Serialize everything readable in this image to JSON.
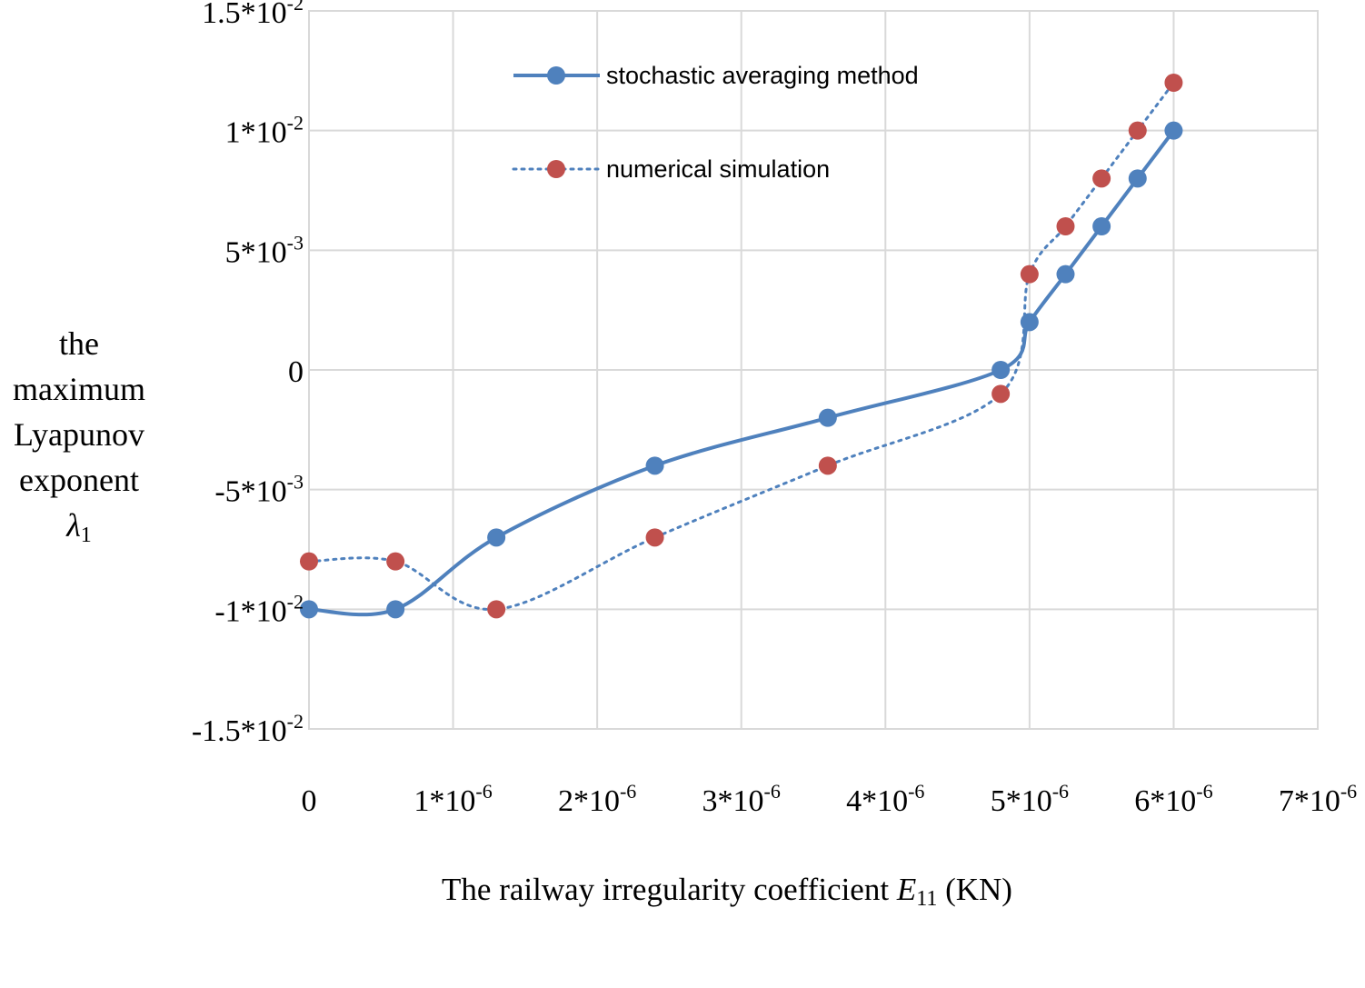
{
  "chart_data": {
    "type": "line",
    "title": "",
    "xlabel": {
      "text": "The railway irregularity coefficient ",
      "symbol": "E",
      "subscript": "11",
      "unit": " (KN)"
    },
    "ylabel": {
      "lines": [
        "the",
        "maximum",
        "Lyapunov",
        "exponent"
      ],
      "symbol": "λ",
      "subscript": "1"
    },
    "xlim": [
      0,
      7e-06
    ],
    "ylim": [
      -0.015,
      0.015
    ],
    "grid": true,
    "legend_position": "top-center",
    "x_ticks": [
      {
        "value": 0,
        "base": "0",
        "exp": ""
      },
      {
        "value": 1e-06,
        "base": "1*10",
        "exp": "-6"
      },
      {
        "value": 2e-06,
        "base": "2*10",
        "exp": "-6"
      },
      {
        "value": 3e-06,
        "base": "3*10",
        "exp": "-6"
      },
      {
        "value": 4e-06,
        "base": "4*10",
        "exp": "-6"
      },
      {
        "value": 5e-06,
        "base": "5*10",
        "exp": "-6"
      },
      {
        "value": 6e-06,
        "base": "6*10",
        "exp": "-6"
      },
      {
        "value": 7e-06,
        "base": "7*10",
        "exp": "-6"
      }
    ],
    "y_ticks": [
      {
        "value": 0.015,
        "base": "1.5*10",
        "exp": "-2"
      },
      {
        "value": 0.01,
        "base": "1*10",
        "exp": "-2"
      },
      {
        "value": 0.005,
        "base": "5*10",
        "exp": "-3"
      },
      {
        "value": 0,
        "base": "0",
        "exp": ""
      },
      {
        "value": -0.005,
        "base": "-5*10",
        "exp": "-3"
      },
      {
        "value": -0.01,
        "base": "-1*10",
        "exp": "-2"
      },
      {
        "value": -0.015,
        "base": "-1.5*10",
        "exp": "-2"
      }
    ],
    "series": [
      {
        "name": "stochastic averaging method",
        "color": "#4f81bd",
        "line_style": "solid",
        "marker_color": "#4f81bd",
        "x": [
          0.0,
          6e-07,
          1.3e-06,
          2.4e-06,
          3.6e-06,
          4.8e-06,
          5e-06,
          5.25e-06,
          5.5e-06,
          5.75e-06,
          6e-06
        ],
        "y": [
          -0.01,
          -0.01,
          -0.007,
          -0.004,
          -0.002,
          0.0,
          0.002,
          0.004,
          0.006,
          0.008,
          0.01
        ]
      },
      {
        "name": "numerical simulation",
        "color": "#4f81bd",
        "line_style": "dotted",
        "marker_color": "#c0504d",
        "x": [
          0.0,
          6e-07,
          1.3e-06,
          2.4e-06,
          3.6e-06,
          4.8e-06,
          5e-06,
          5.25e-06,
          5.5e-06,
          5.75e-06,
          6e-06
        ],
        "y": [
          -0.008,
          -0.008,
          -0.01,
          -0.007,
          -0.004,
          -0.001,
          0.004,
          0.006,
          0.008,
          0.01,
          0.012
        ]
      }
    ]
  }
}
